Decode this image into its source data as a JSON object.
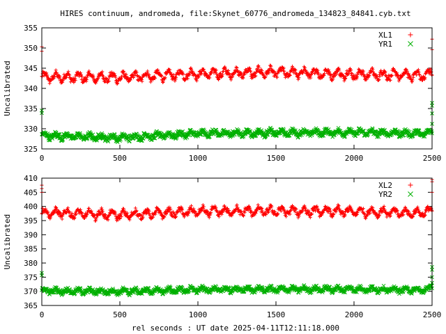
{
  "chart_data": [
    {
      "type": "scatter",
      "title": "HIRES continuum, andromeda, file:Skynet_60776_andromeda_134823_84841.cyb.txt",
      "xlabel": "",
      "ylabel": "Uncalibrated",
      "xlim": [
        0,
        2500
      ],
      "ylim": [
        325,
        355
      ],
      "xticks": [
        0,
        500,
        1000,
        1500,
        2000,
        2500
      ],
      "yticks": [
        325,
        330,
        335,
        340,
        345,
        350,
        355
      ],
      "series": [
        {
          "name": "XL1",
          "color": "#ff0000",
          "marker": "plus",
          "baseline": [
            [
              0,
              342.8
            ],
            [
              500,
              342.7
            ],
            [
              1000,
              343.6
            ],
            [
              1500,
              344.0
            ],
            [
              2000,
              343.5
            ],
            [
              2460,
              343.2
            ],
            [
              2500,
              344.0
            ]
          ],
          "amplitude": 0.9,
          "scatter": 0.6,
          "edge_points": [
            [
              0,
              350.3
            ],
            [
              0,
              349.2
            ],
            [
              2500,
              352.2
            ],
            [
              2500,
              349.6
            ]
          ]
        },
        {
          "name": "YR1",
          "color": "#00b000",
          "marker": "cross",
          "baseline": [
            [
              0,
              328.3
            ],
            [
              500,
              327.8
            ],
            [
              1000,
              328.8
            ],
            [
              1500,
              329.0
            ],
            [
              2000,
              329.1
            ],
            [
              2460,
              328.8
            ],
            [
              2500,
              329.5
            ]
          ],
          "amplitude": 0.5,
          "scatter": 0.6,
          "edge_points": [
            [
              0,
              334.5
            ],
            [
              0,
              333.9
            ],
            [
              2500,
              336.4
            ],
            [
              2500,
              335.7
            ],
            [
              2500,
              333.8
            ],
            [
              2500,
              331.2
            ]
          ]
        }
      ]
    },
    {
      "type": "scatter",
      "title": "",
      "xlabel": "rel seconds : UT date 2025-04-11T12:11:18.000",
      "ylabel": "Uncalibrated",
      "xlim": [
        0,
        2500
      ],
      "ylim": [
        365,
        410
      ],
      "xticks": [
        0,
        500,
        1000,
        1500,
        2000,
        2500
      ],
      "yticks": [
        365,
        370,
        375,
        380,
        385,
        390,
        395,
        400,
        405,
        410
      ],
      "series": [
        {
          "name": "XL2",
          "color": "#ff0000",
          "marker": "plus",
          "baseline": [
            [
              0,
              397.8
            ],
            [
              500,
              397.0
            ],
            [
              1000,
              398.2
            ],
            [
              1500,
              398.4
            ],
            [
              2000,
              398.2
            ],
            [
              2460,
              397.6
            ],
            [
              2500,
              399.5
            ]
          ],
          "amplitude": 1.2,
          "scatter": 0.8,
          "edge_points": [
            [
              0,
              407.5
            ],
            [
              0,
              406.3
            ],
            [
              0,
              405.0
            ],
            [
              2500,
              409.5
            ],
            [
              2500,
              408.7
            ],
            [
              2500,
              405.0
            ]
          ]
        },
        {
          "name": "YR2",
          "color": "#00b000",
          "marker": "cross",
          "baseline": [
            [
              0,
              370.2
            ],
            [
              500,
              369.9
            ],
            [
              1000,
              370.6
            ],
            [
              1500,
              370.7
            ],
            [
              2000,
              370.8
            ],
            [
              2460,
              370.4
            ],
            [
              2500,
              371.5
            ]
          ],
          "amplitude": 0.6,
          "scatter": 0.7,
          "edge_points": [
            [
              0,
              376.5
            ],
            [
              0,
              375.7
            ],
            [
              2500,
              378.6
            ],
            [
              2500,
              377.6
            ],
            [
              2500,
              375.0
            ],
            [
              2500,
              373.0
            ]
          ]
        }
      ]
    }
  ]
}
